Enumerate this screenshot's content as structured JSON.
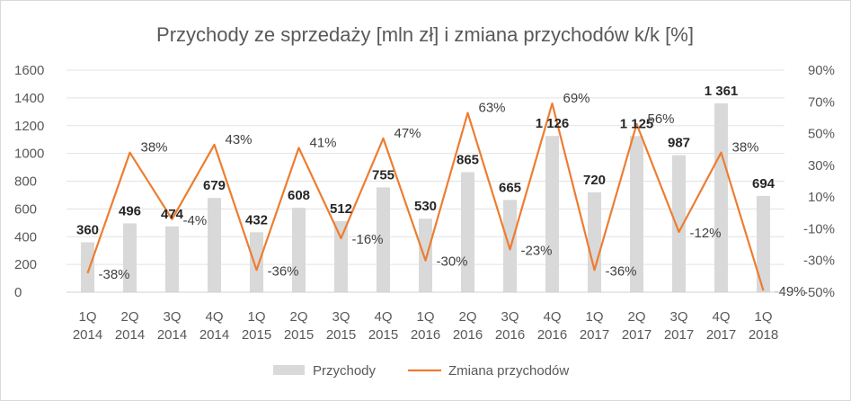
{
  "chart_data": {
    "type": "bar",
    "title": "Przychody ze sprzedaży [mln zł] i zmiana przychodów k/k [%]",
    "categories": [
      [
        "1Q",
        "2014"
      ],
      [
        "2Q",
        "2014"
      ],
      [
        "3Q",
        "2014"
      ],
      [
        "4Q",
        "2014"
      ],
      [
        "1Q",
        "2015"
      ],
      [
        "2Q",
        "2015"
      ],
      [
        "3Q",
        "2015"
      ],
      [
        "4Q",
        "2015"
      ],
      [
        "1Q",
        "2016"
      ],
      [
        "2Q",
        "2016"
      ],
      [
        "3Q",
        "2016"
      ],
      [
        "4Q",
        "2016"
      ],
      [
        "1Q",
        "2017"
      ],
      [
        "2Q",
        "2017"
      ],
      [
        "3Q",
        "2017"
      ],
      [
        "4Q",
        "2017"
      ],
      [
        "1Q",
        "2018"
      ]
    ],
    "ylim": [
      0,
      1600
    ],
    "y_ticks": [
      "0",
      "200",
      "400",
      "600",
      "800",
      "1000",
      "1200",
      "1400",
      "1600"
    ],
    "y2lim": [
      -50,
      90
    ],
    "y2_ticks": [
      "-50%",
      "-30%",
      "-10%",
      "10%",
      "30%",
      "50%",
      "70%",
      "90%"
    ],
    "legend_position": "bottom",
    "series": [
      {
        "name": "Przychody",
        "type": "bar",
        "axis": "left",
        "color": "#d9d9d9",
        "values": [
          360,
          496,
          474,
          679,
          432,
          608,
          512,
          755,
          530,
          865,
          665,
          1126,
          720,
          1125,
          987,
          1361,
          694
        ],
        "labels": [
          "360",
          "496",
          "474",
          "679",
          "432",
          "608",
          "512",
          "755",
          "530",
          "865",
          "665",
          "1 126",
          "720",
          "1 125",
          "987",
          "1 361",
          "694"
        ]
      },
      {
        "name": "Zmiana przychodów",
        "type": "line",
        "axis": "right",
        "color": "#ed7d31",
        "values": [
          -38,
          38,
          -4,
          43,
          -36,
          41,
          -16,
          47,
          -30,
          63,
          -23,
          69,
          -36,
          56,
          -12,
          38,
          -49
        ],
        "labels": [
          "-38%",
          "38%",
          "-4%",
          "43%",
          "-36%",
          "41%",
          "-16%",
          "47%",
          "-30%",
          "63%",
          "-23%",
          "69%",
          "-36%",
          "56%",
          "-12%",
          "38%",
          "-49%"
        ]
      }
    ]
  }
}
